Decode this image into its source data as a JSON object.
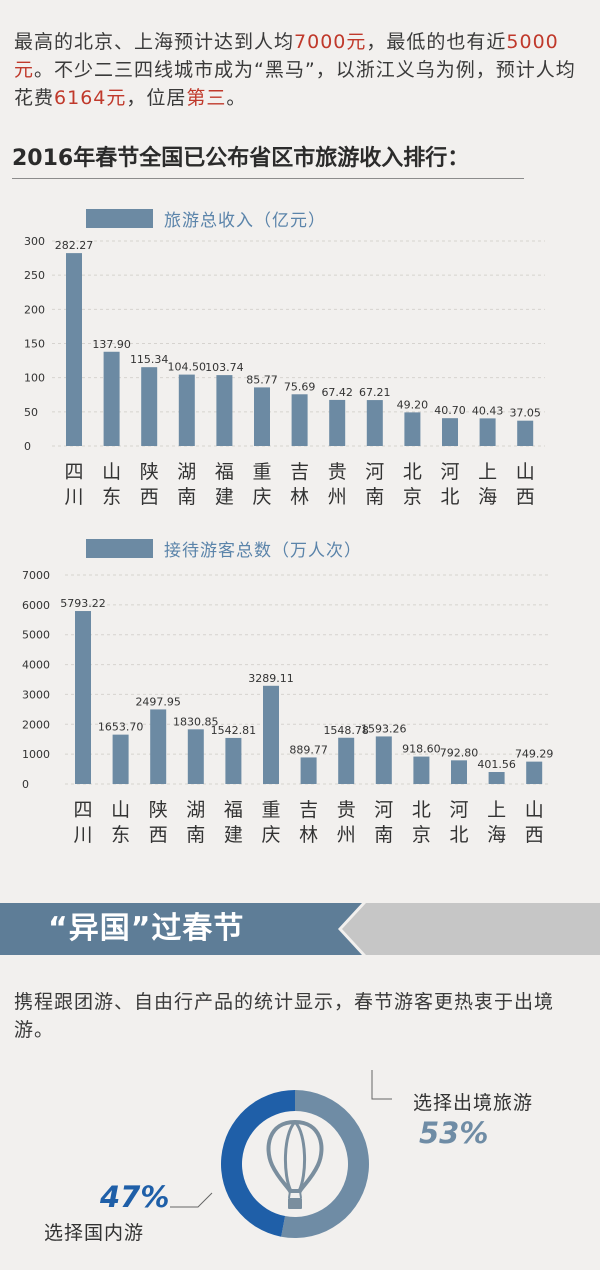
{
  "intro": {
    "part1": "最高的北京、上海预计达到人均",
    "v1": "7000元",
    "part2": "，最低的也有近",
    "v2": "5000元",
    "part3": "。不少二三四线城市成为“黑马”，以浙江义乌为例，预计人均花费",
    "v3": "6164元",
    "part4": "，位居",
    "v4": "第三",
    "part5": "。"
  },
  "section_title": "2016年春节全国已公布省区市旅游收入排行：",
  "chart_data": [
    {
      "type": "bar",
      "legend": "旅游总收入（亿元）",
      "categories": [
        "四川",
        "山东",
        "陕西",
        "湖南",
        "福建",
        "重庆",
        "吉林",
        "贵州",
        "河南",
        "北京",
        "河北",
        "上海",
        "山西"
      ],
      "values": [
        282.27,
        137.9,
        115.34,
        104.5,
        103.74,
        85.77,
        75.69,
        67.42,
        67.21,
        49.2,
        40.7,
        40.43,
        37.05
      ],
      "value_labels": [
        "282.27",
        "137.90",
        "115.34",
        "104.50",
        "103.74",
        "85.77",
        "75.69",
        "67.42",
        "67.21",
        "49.20",
        "40.70",
        "40.43",
        "37.05"
      ],
      "yticks": [
        0,
        50,
        100,
        150,
        200,
        250,
        300
      ],
      "ylim": [
        0,
        300
      ],
      "grid": true,
      "color": "#6c8aa3"
    },
    {
      "type": "bar",
      "legend": "接待游客总数（万人次）",
      "categories": [
        "四川",
        "山东",
        "陕西",
        "湖南",
        "福建",
        "重庆",
        "吉林",
        "贵州",
        "河南",
        "北京",
        "河北",
        "上海",
        "山西"
      ],
      "values": [
        5793.22,
        1653.7,
        2497.95,
        1830.85,
        1542.81,
        3289.11,
        889.77,
        1548.78,
        1593.26,
        918.6,
        792.8,
        401.56,
        749.29
      ],
      "value_labels": [
        "5793.22",
        "1653.70",
        "2497.95",
        "1830.85",
        "1542.81",
        "3289.11",
        "889.77",
        "1548.78",
        "1593.26",
        "918.60",
        "792.80",
        "401.56",
        "749.29"
      ],
      "yticks": [
        0,
        1000,
        2000,
        3000,
        4000,
        5000,
        6000,
        7000
      ],
      "ylim": [
        0,
        7000
      ],
      "grid": true,
      "color": "#6c8aa3"
    }
  ],
  "banner": {
    "title": "“异国”过春节",
    "color": "#5e7d97"
  },
  "paragraph2": "携程跟团游、自由行产品的统计显示，春节游客更热衷于出境游。",
  "donut": {
    "outbound_label": "选择出境旅游",
    "outbound_value": 53,
    "outbound_text": "53%",
    "outbound_color": "#6f8ca5",
    "domestic_label": "选择国内游",
    "domestic_value": 47,
    "domestic_text": "47%",
    "domestic_color": "#1f5fa8",
    "center_icon": "hot-air-balloon-icon"
  }
}
